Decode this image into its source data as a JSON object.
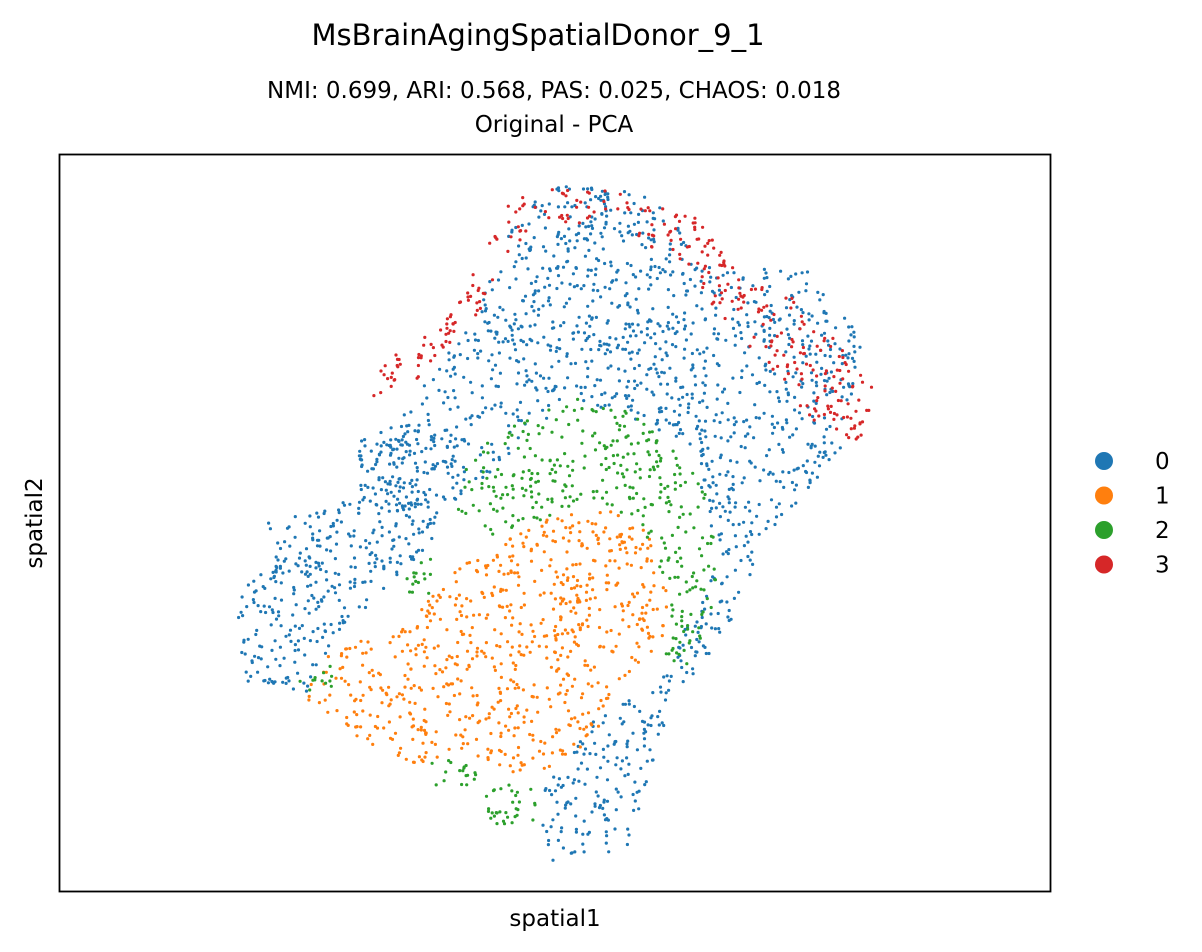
{
  "chart_data": {
    "type": "scatter",
    "title": "MsBrainAgingSpatialDonor_9_1",
    "subtitle_line1": "NMI: 0.699,  ARI: 0.568,  PAS: 0.025,  CHAOS: 0.018",
    "subtitle_line2": "Original - PCA",
    "xlabel": "spatial1",
    "ylabel": "spatial2",
    "grid": false,
    "ticks_shown": false,
    "legend_position": "right",
    "series": [
      {
        "name": "0",
        "color": "#1f77b4",
        "regions": [
          [
            [
              0.475,
              0.04
            ],
            [
              0.6,
              0.05
            ],
            [
              0.66,
              0.16
            ],
            [
              0.75,
              0.15
            ],
            [
              0.81,
              0.25
            ],
            [
              0.79,
              0.4
            ],
            [
              0.71,
              0.53
            ],
            [
              0.67,
              0.66
            ],
            [
              0.62,
              0.74
            ],
            [
              0.57,
              0.95
            ],
            [
              0.485,
              0.96
            ],
            [
              0.49,
              0.86
            ],
            [
              0.54,
              0.76
            ],
            [
              0.605,
              0.72
            ],
            [
              0.66,
              0.56
            ],
            [
              0.635,
              0.39
            ],
            [
              0.52,
              0.33
            ],
            [
              0.41,
              0.46
            ],
            [
              0.36,
              0.55
            ],
            [
              0.275,
              0.66
            ],
            [
              0.25,
              0.73
            ],
            [
              0.18,
              0.72
            ],
            [
              0.18,
              0.59
            ],
            [
              0.27,
              0.51
            ],
            [
              0.33,
              0.36
            ],
            [
              0.38,
              0.29
            ],
            [
              0.42,
              0.2
            ],
            [
              0.45,
              0.12
            ]
          ],
          [
            [
              0.3,
              0.39
            ],
            [
              0.36,
              0.34
            ],
            [
              0.4,
              0.42
            ],
            [
              0.35,
              0.5
            ],
            [
              0.31,
              0.47
            ]
          ],
          [
            [
              0.21,
              0.5
            ],
            [
              0.27,
              0.48
            ],
            [
              0.26,
              0.56
            ],
            [
              0.21,
              0.57
            ]
          ]
        ]
      },
      {
        "name": "1",
        "color": "#ff7f0e",
        "regions": [
          [
            [
              0.5,
              0.49
            ],
            [
              0.56,
              0.48
            ],
            [
              0.6,
              0.52
            ],
            [
              0.615,
              0.6
            ],
            [
              0.61,
              0.66
            ],
            [
              0.56,
              0.74
            ],
            [
              0.52,
              0.83
            ],
            [
              0.46,
              0.84
            ],
            [
              0.41,
              0.81
            ],
            [
              0.35,
              0.83
            ],
            [
              0.3,
              0.79
            ],
            [
              0.25,
              0.74
            ],
            [
              0.26,
              0.68
            ],
            [
              0.35,
              0.64
            ],
            [
              0.4,
              0.56
            ]
          ]
        ]
      },
      {
        "name": "2",
        "color": "#2ca02c",
        "regions": [
          [
            [
              0.52,
              0.33
            ],
            [
              0.565,
              0.34
            ],
            [
              0.625,
              0.4
            ],
            [
              0.66,
              0.48
            ],
            [
              0.665,
              0.59
            ],
            [
              0.64,
              0.69
            ],
            [
              0.61,
              0.7
            ],
            [
              0.615,
              0.6
            ],
            [
              0.59,
              0.51
            ],
            [
              0.54,
              0.47
            ],
            [
              0.44,
              0.52
            ],
            [
              0.4,
              0.48
            ],
            [
              0.415,
              0.4
            ],
            [
              0.47,
              0.36
            ]
          ],
          [
            [
              0.37,
              0.82
            ],
            [
              0.42,
              0.81
            ],
            [
              0.43,
              0.86
            ],
            [
              0.38,
              0.86
            ]
          ],
          [
            [
              0.43,
              0.84
            ],
            [
              0.48,
              0.85
            ],
            [
              0.48,
              0.91
            ],
            [
              0.43,
              0.91
            ]
          ],
          [
            [
              0.24,
              0.71
            ],
            [
              0.275,
              0.69
            ],
            [
              0.275,
              0.73
            ],
            [
              0.245,
              0.73
            ]
          ],
          [
            [
              0.35,
              0.56
            ],
            [
              0.38,
              0.54
            ],
            [
              0.38,
              0.61
            ],
            [
              0.35,
              0.61
            ]
          ]
        ]
      },
      {
        "name": "3",
        "color": "#d62728",
        "regions": [
          [
            [
              0.465,
              0.04
            ],
            [
              0.57,
              0.045
            ],
            [
              0.575,
              0.075
            ],
            [
              0.475,
              0.11
            ],
            [
              0.45,
              0.14
            ],
            [
              0.415,
              0.24
            ],
            [
              0.37,
              0.29
            ],
            [
              0.36,
              0.35
            ],
            [
              0.36,
              0.25
            ],
            [
              0.4,
              0.21
            ],
            [
              0.43,
              0.11
            ]
          ],
          [
            [
              0.58,
              0.06
            ],
            [
              0.645,
              0.08
            ],
            [
              0.69,
              0.17
            ],
            [
              0.75,
              0.2
            ],
            [
              0.8,
              0.28
            ],
            [
              0.825,
              0.32
            ],
            [
              0.81,
              0.39
            ],
            [
              0.77,
              0.38
            ],
            [
              0.72,
              0.3
            ],
            [
              0.67,
              0.22
            ],
            [
              0.62,
              0.15
            ],
            [
              0.58,
              0.12
            ]
          ],
          [
            [
              0.315,
              0.27
            ],
            [
              0.345,
              0.27
            ],
            [
              0.345,
              0.33
            ],
            [
              0.315,
              0.33
            ]
          ]
        ]
      }
    ]
  }
}
